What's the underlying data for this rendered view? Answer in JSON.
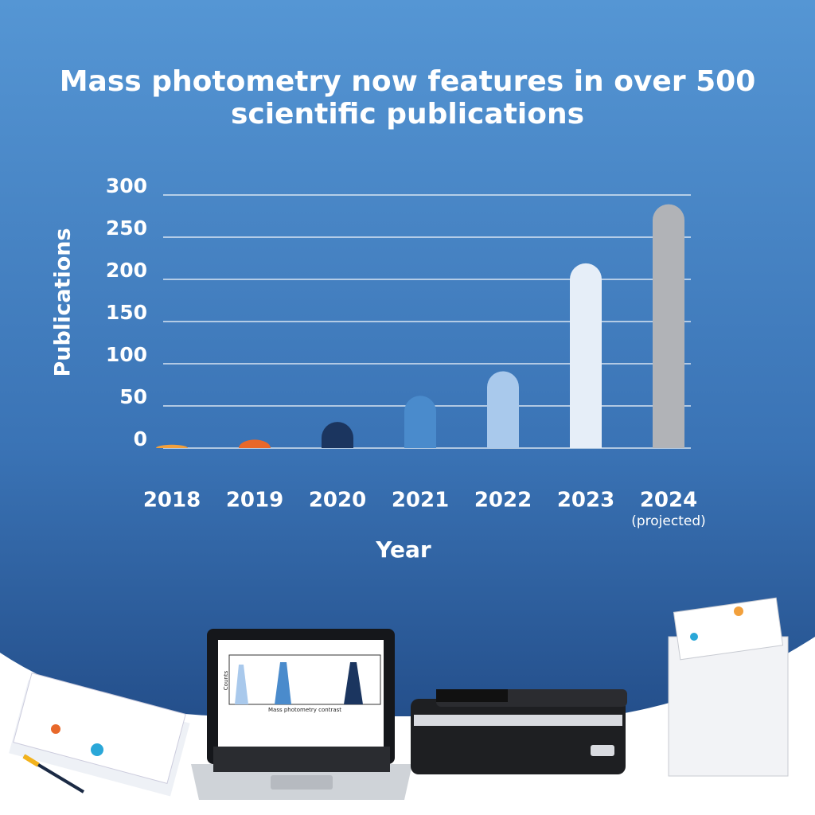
{
  "chart_data": {
    "type": "bar",
    "title": "Mass photometry now features in over 500 scientific publications",
    "ylabel": "Publications",
    "xlabel": "Year",
    "categories": [
      "2018",
      "2019",
      "2020",
      "2021",
      "2022",
      "2023",
      "2024"
    ],
    "category_notes": [
      null,
      null,
      null,
      null,
      null,
      null,
      "(projected)"
    ],
    "values": [
      4,
      10,
      31,
      62,
      91,
      219,
      289
    ],
    "colors": [
      "#f2a03c",
      "#e8682a",
      "#1b355f",
      "#4a8bcc",
      "#a9c9ec",
      "#e6eef8",
      "#b1b3b7"
    ],
    "ylim": [
      0,
      300
    ],
    "yticks": [
      0,
      50,
      100,
      150,
      200,
      250,
      300
    ],
    "grid": true
  },
  "illustration": {
    "y_label": "Counts",
    "x_label": "Mass photometry contrast"
  }
}
